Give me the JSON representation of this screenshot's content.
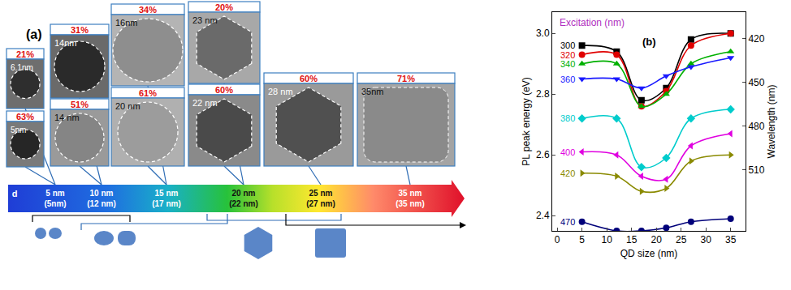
{
  "panel_a": {
    "label": "(a)",
    "tiles": [
      {
        "percent": "21%",
        "size_label": "6.1nm"
      },
      {
        "percent": "63%",
        "size_label": "5nm"
      },
      {
        "percent": "31%",
        "size_label": "14nm"
      },
      {
        "percent": "51%",
        "size_label": "14 nm"
      },
      {
        "percent": "34%",
        "size_label": "16nm"
      },
      {
        "percent": "61%",
        "size_label": "20 nm"
      },
      {
        "percent": "20%",
        "size_label": "23 nm"
      },
      {
        "percent": "60%",
        "size_label": "22 nm"
      },
      {
        "percent": "60%",
        "size_label": "28 nm"
      },
      {
        "percent": "71%",
        "size_label": "35nm"
      }
    ],
    "scale": {
      "title": "d",
      "marks": [
        {
          "label": "5 nm",
          "sub": "(5nm)"
        },
        {
          "label": "10 nm",
          "sub": "(12 nm)"
        },
        {
          "label": "15 nm",
          "sub": "(17 nm)"
        },
        {
          "label": "20 nm",
          "sub": "(22 nm)"
        },
        {
          "label": "25 nm",
          "sub": "(27 nm)"
        },
        {
          "label": "35 nm",
          "sub": "(35 nm)"
        }
      ]
    }
  },
  "chart_data": {
    "type": "line",
    "panel_label": "(b)",
    "annotation": "Excitation (nm)",
    "x_label": "QD size (nm)",
    "y_label": "PL peak energy (eV)",
    "y2_label": "Wavelength (nm)",
    "x": [
      5,
      12,
      17,
      22,
      27,
      35
    ],
    "xlim": [
      -1,
      38
    ],
    "xticks": [
      0,
      5,
      10,
      15,
      20,
      25,
      30,
      35
    ],
    "ylim": [
      2.35,
      3.07
    ],
    "yticks": [
      2.4,
      2.6,
      2.8,
      {
        "value": 3,
        "label": "3.0"
      }
    ],
    "y2lim": [
      552,
      402
    ],
    "y2ticks": [
      420,
      450,
      480,
      510
    ],
    "grid": false,
    "legend": false,
    "series": [
      {
        "name": "300",
        "color": "#000000",
        "marker": "square",
        "line_style": "spline",
        "values": [
          2.96,
          2.94,
          2.78,
          2.82,
          2.98,
          3.0
        ]
      },
      {
        "name": "320",
        "color": "#e00000",
        "marker": "circle",
        "line_style": "spline",
        "values": [
          2.93,
          2.93,
          2.76,
          2.81,
          2.96,
          3.0
        ]
      },
      {
        "name": "340",
        "color": "#00b000",
        "marker": "triangle-up",
        "line_style": "spline",
        "values": [
          2.9,
          2.9,
          2.76,
          2.8,
          2.9,
          2.94
        ]
      },
      {
        "name": "360",
        "color": "#1a1aff",
        "marker": "triangle-down",
        "line_style": "spline",
        "values": [
          2.85,
          2.85,
          2.82,
          2.86,
          2.89,
          2.92
        ]
      },
      {
        "name": "380",
        "color": "#00cccc",
        "marker": "diamond",
        "line_style": "spline",
        "values": [
          2.72,
          2.72,
          2.56,
          2.59,
          2.72,
          2.75
        ]
      },
      {
        "name": "400",
        "color": "#e000e0",
        "marker": "triangle-left",
        "line_style": "spline",
        "values": [
          2.61,
          2.6,
          2.53,
          2.52,
          2.63,
          2.67
        ]
      },
      {
        "name": "420",
        "color": "#8a8a00",
        "marker": "triangle-right",
        "line_style": "spline",
        "values": [
          2.54,
          2.53,
          2.48,
          2.49,
          2.58,
          2.6
        ]
      },
      {
        "name": "470",
        "color": "#00007a",
        "marker": "circle",
        "line_style": "spline",
        "values": [
          2.38,
          2.35,
          2.35,
          2.36,
          2.38,
          2.39
        ]
      }
    ]
  }
}
